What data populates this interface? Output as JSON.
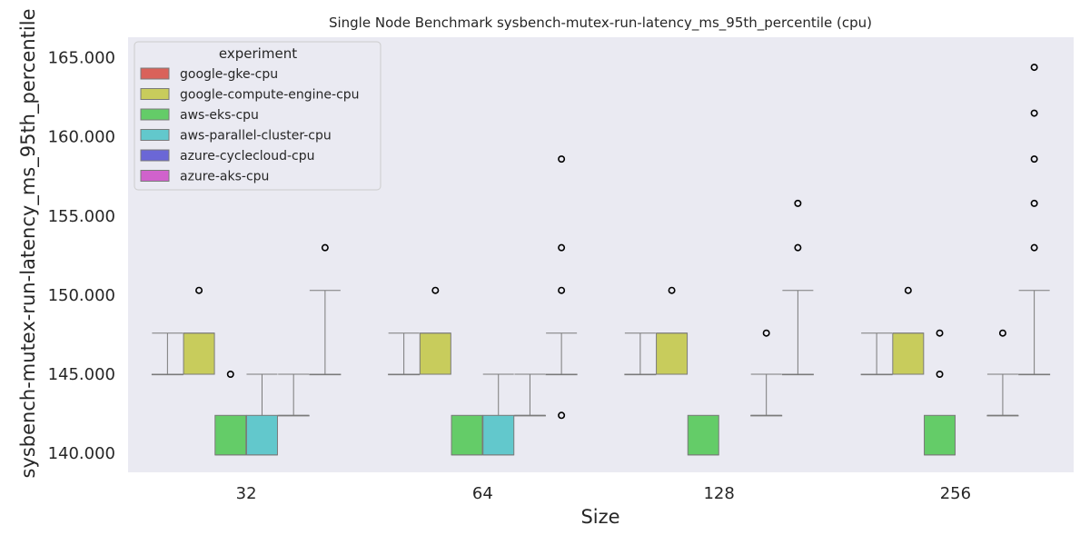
{
  "chart_data": {
    "type": "box",
    "title": "Single Node Benchmark sysbench-mutex-run-latency_ms_95th_percentile (cpu)",
    "xlabel": "Size",
    "ylabel": "sysbench-mutex-run-latency_ms_95th_percentile",
    "categories": [
      "32",
      "64",
      "128",
      "256"
    ],
    "ylim": [
      138.8,
      166.3
    ],
    "yticks": [
      140,
      145,
      150,
      155,
      160,
      165
    ],
    "ytick_labels": [
      "140.000",
      "145.000",
      "150.000",
      "155.000",
      "160.000",
      "165.000"
    ],
    "grid": false,
    "legend": {
      "title": "experiment",
      "position": "top-left"
    },
    "series": [
      {
        "name": "google-gke-cpu",
        "color": "#d9625a",
        "boxes": [
          {
            "whisker_low": 145.0,
            "q1": 145.0,
            "median": 145.0,
            "q3": 145.0,
            "whisker_high": 147.6,
            "outliers": []
          },
          {
            "whisker_low": 145.0,
            "q1": 145.0,
            "median": 145.0,
            "q3": 145.0,
            "whisker_high": 147.6,
            "outliers": []
          },
          {
            "whisker_low": 145.0,
            "q1": 145.0,
            "median": 145.0,
            "q3": 145.0,
            "whisker_high": 147.6,
            "outliers": []
          },
          {
            "whisker_low": 145.0,
            "q1": 145.0,
            "median": 145.0,
            "q3": 145.0,
            "whisker_high": 147.6,
            "outliers": []
          }
        ]
      },
      {
        "name": "google-compute-engine-cpu",
        "color": "#c8cc5c",
        "boxes": [
          {
            "whisker_low": 145.0,
            "q1": 145.0,
            "median": 147.6,
            "q3": 147.6,
            "whisker_high": 147.6,
            "outliers": [
              150.3
            ]
          },
          {
            "whisker_low": 145.0,
            "q1": 145.0,
            "median": 147.6,
            "q3": 147.6,
            "whisker_high": 147.6,
            "outliers": [
              150.3
            ]
          },
          {
            "whisker_low": 145.0,
            "q1": 145.0,
            "median": 147.6,
            "q3": 147.6,
            "whisker_high": 147.6,
            "outliers": [
              150.3
            ]
          },
          {
            "whisker_low": 145.0,
            "q1": 145.0,
            "median": 147.6,
            "q3": 147.6,
            "whisker_high": 147.6,
            "outliers": [
              150.3
            ]
          }
        ]
      },
      {
        "name": "aws-eks-cpu",
        "color": "#64cc68",
        "boxes": [
          {
            "whisker_low": 139.9,
            "q1": 139.9,
            "median": 139.9,
            "q3": 142.4,
            "whisker_high": 142.4,
            "outliers": [
              145.0
            ]
          },
          {
            "whisker_low": 139.9,
            "q1": 139.9,
            "median": 139.9,
            "q3": 142.4,
            "whisker_high": 142.4,
            "outliers": []
          },
          {
            "whisker_low": 139.9,
            "q1": 139.9,
            "median": 139.9,
            "q3": 142.4,
            "whisker_high": 142.4,
            "outliers": []
          },
          {
            "whisker_low": 139.9,
            "q1": 139.9,
            "median": 139.9,
            "q3": 142.4,
            "whisker_high": 142.4,
            "outliers": [
              145.0,
              147.6
            ]
          }
        ]
      },
      {
        "name": "aws-parallel-cluster-cpu",
        "color": "#62c8cc",
        "boxes": [
          {
            "whisker_low": 139.9,
            "q1": 139.9,
            "median": 139.9,
            "q3": 142.4,
            "whisker_high": 145.0,
            "outliers": []
          },
          {
            "whisker_low": 139.9,
            "q1": 139.9,
            "median": 139.9,
            "q3": 142.4,
            "whisker_high": 145.0,
            "outliers": []
          },
          null,
          null
        ]
      },
      {
        "name": "azure-cyclecloud-cpu",
        "color": "#6b67d6",
        "boxes": [
          {
            "whisker_low": 142.4,
            "q1": 142.4,
            "median": 142.4,
            "q3": 142.4,
            "whisker_high": 145.0,
            "outliers": []
          },
          {
            "whisker_low": 142.4,
            "q1": 142.4,
            "median": 142.4,
            "q3": 142.4,
            "whisker_high": 145.0,
            "outliers": []
          },
          {
            "whisker_low": 142.4,
            "q1": 142.4,
            "median": 142.4,
            "q3": 142.4,
            "whisker_high": 145.0,
            "outliers": [
              147.6
            ]
          },
          {
            "whisker_low": 142.4,
            "q1": 142.4,
            "median": 142.4,
            "q3": 142.4,
            "whisker_high": 145.0,
            "outliers": [
              147.6
            ]
          }
        ]
      },
      {
        "name": "azure-aks-cpu",
        "color": "#d062cc",
        "boxes": [
          {
            "whisker_low": 145.0,
            "q1": 145.0,
            "median": 145.0,
            "q3": 145.0,
            "whisker_high": 150.3,
            "outliers": [
              153.0
            ]
          },
          {
            "whisker_low": 145.0,
            "q1": 145.0,
            "median": 145.0,
            "q3": 145.0,
            "whisker_high": 147.6,
            "outliers": [
              142.4,
              150.3,
              153.0,
              158.6
            ]
          },
          {
            "whisker_low": 145.0,
            "q1": 145.0,
            "median": 145.0,
            "q3": 145.0,
            "whisker_high": 150.3,
            "outliers": [
              153.0,
              155.8
            ]
          },
          {
            "whisker_low": 145.0,
            "q1": 145.0,
            "median": 145.0,
            "q3": 145.0,
            "whisker_high": 150.3,
            "outliers": [
              153.0,
              155.8,
              158.6,
              161.5,
              164.4
            ]
          }
        ]
      }
    ]
  }
}
